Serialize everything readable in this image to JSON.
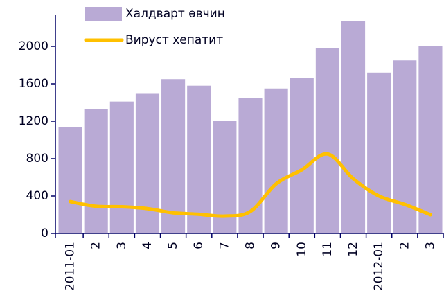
{
  "chart_data": {
    "type": "bar_line",
    "categories": [
      "2011-01",
      "2",
      "3",
      "4",
      "5",
      "6",
      "7",
      "8",
      "9",
      "10",
      "11",
      "12",
      "2012-01",
      "2",
      "3"
    ],
    "series": [
      {
        "name": "Халдварт өвчин",
        "type": "bar",
        "color": "#b9aad5",
        "values": [
          1140,
          1330,
          1410,
          1500,
          1650,
          1580,
          1200,
          1450,
          1550,
          1660,
          1980,
          2270,
          1720,
          1850,
          2000
        ]
      },
      {
        "name": "Вируст хепатит",
        "type": "line",
        "color": "#ffc000",
        "values": [
          340,
          290,
          285,
          265,
          220,
          205,
          185,
          235,
          530,
          680,
          850,
          585,
          400,
          310,
          200
        ]
      }
    ],
    "ylim": [
      0,
      2400
    ],
    "yticks": [
      0,
      400,
      800,
      1200,
      1600,
      2000
    ]
  }
}
